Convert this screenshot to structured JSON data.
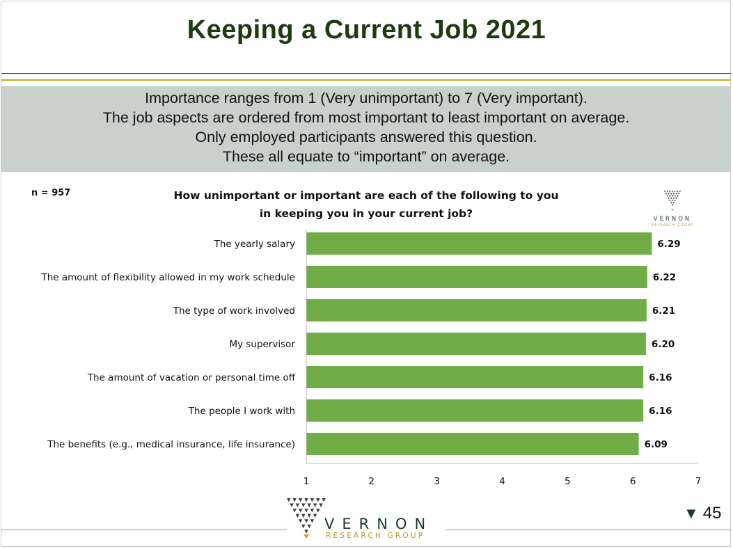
{
  "slide": {
    "title": "Keeping a Current Job 2021",
    "page_number": "45",
    "band_lines": [
      "Importance ranges from 1 (Very unimportant) to 7 (Very important).",
      "The job aspects are ordered from most important to least important on average.",
      "Only employed participants answered this question.",
      "These all equate to “important” on average."
    ],
    "sample_size": "n = 957",
    "logo": {
      "name": "VERNON",
      "subtitle": "Research Group"
    }
  },
  "colors": {
    "bar": "#70ad47",
    "title": "#1f3a10",
    "band": "#c9d1cc",
    "gold": "#c8a820"
  },
  "chart_data": {
    "type": "bar",
    "orientation": "horizontal",
    "title_lines": [
      "How unimportant or important are each of the following to you",
      "in keeping you in your current job?"
    ],
    "categories": [
      "The yearly salary",
      "The amount of flexibility allowed in my work schedule",
      "The type of work involved",
      "My supervisor",
      "The amount of vacation or personal time off",
      "The people I work with",
      "The benefits (e.g., medical insurance, life insurance)"
    ],
    "values": [
      6.29,
      6.22,
      6.21,
      6.2,
      6.16,
      6.16,
      6.09
    ],
    "value_labels": [
      "6.29",
      "6.22",
      "6.21",
      "6.20",
      "6.16",
      "6.16",
      "6.09"
    ],
    "xlim": [
      1,
      7
    ],
    "xticks": [
      "1",
      "2",
      "3",
      "4",
      "5",
      "6",
      "7"
    ],
    "grid": false,
    "legend": "none"
  }
}
